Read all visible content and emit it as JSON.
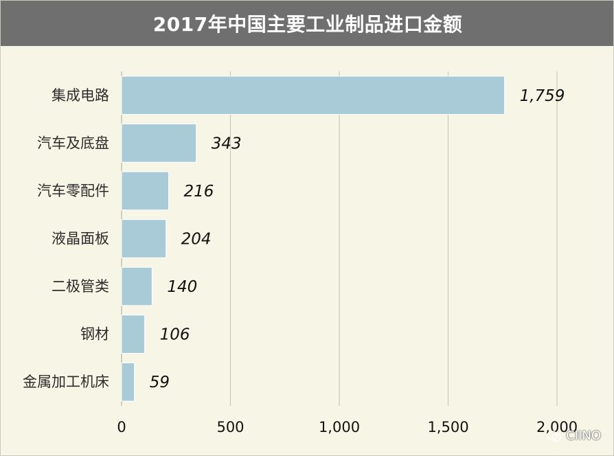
{
  "chart_data": {
    "type": "bar",
    "orientation": "horizontal",
    "title": "2017年中国主要工业制品进口金额",
    "categories": [
      "集成电路",
      "汽车及底盘",
      "汽车零配件",
      "液晶面板",
      "二极管类",
      "钢材",
      "金属加工机床"
    ],
    "values": [
      1759,
      343,
      216,
      204,
      140,
      106,
      59
    ],
    "value_labels": [
      "1,759",
      "343",
      "216",
      "204",
      "140",
      "106",
      "59"
    ],
    "xlim": [
      0,
      2000
    ],
    "xticks": [
      0,
      500,
      1000,
      1500,
      2000
    ],
    "xtick_labels": [
      "0",
      "500",
      "1,000",
      "1,500",
      "2,000"
    ],
    "grid": "vertical",
    "bar_color": "#a9cad7"
  },
  "watermark": {
    "text": "CIINO"
  }
}
